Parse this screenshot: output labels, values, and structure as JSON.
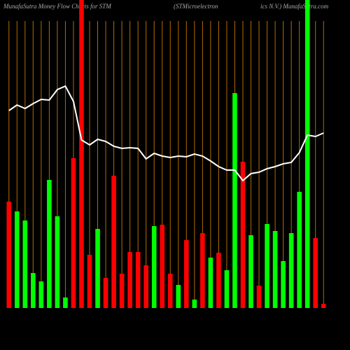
{
  "chart_data": {
    "type": "bar",
    "title": "MunafaSutra  Money Flow  Charts for STM",
    "subtitle": "(STMicroelectron",
    "subtitle2": "ics N.V.) MunafaSutra.com",
    "categories": [
      null,
      null,
      null,
      null,
      null,
      null,
      null,
      null,
      null,
      null,
      null,
      null,
      null,
      null,
      null,
      null,
      null,
      null,
      null,
      null,
      null,
      null,
      null,
      null,
      null,
      null,
      null,
      null,
      null,
      null,
      null,
      null,
      null,
      null,
      null,
      null,
      null,
      null,
      null,
      null
    ],
    "values": [
      152,
      138,
      125,
      50,
      38,
      183,
      131,
      15,
      214,
      440,
      76,
      113,
      43,
      189,
      49,
      80,
      80,
      61,
      117,
      119,
      49,
      33,
      97,
      12,
      107,
      72,
      79,
      54,
      307,
      209,
      104,
      32,
      120,
      110,
      67,
      107,
      166,
      440,
      100,
      6
    ],
    "colors": [
      "#ff0000",
      "#00ff00",
      "#00ff00",
      "#00ff00",
      "#00ff00",
      "#00ff00",
      "#00ff00",
      "#00ff00",
      "#ff0000",
      "#ff0000",
      "#ff0000",
      "#00ff00",
      "#ff0000",
      "#ff0000",
      "#ff0000",
      "#ff0000",
      "#ff0000",
      "#ff0000",
      "#00ff00",
      "#ff0000",
      "#ff0000",
      "#00ff00",
      "#ff0000",
      "#00ff00",
      "#ff0000",
      "#00ff00",
      "#ff0000",
      "#00ff00",
      "#00ff00",
      "#ff0000",
      "#00ff00",
      "#ff0000",
      "#00ff00",
      "#00ff00",
      "#00ff00",
      "#00ff00",
      "#00ff00",
      "#00ff00",
      "#ff0000",
      "#ff0000"
    ],
    "line": {
      "color": "#ffffff",
      "values": [
        282,
        290,
        285,
        292,
        298,
        297,
        312,
        317,
        295,
        240,
        233,
        241,
        238,
        231,
        228,
        229,
        228,
        213,
        221,
        217,
        215,
        217,
        216,
        220,
        217,
        210,
        202,
        197,
        197,
        182,
        192,
        194,
        199,
        202,
        206,
        208,
        222,
        247,
        245,
        250
      ]
    },
    "ylim": [
      0,
      440
    ],
    "gridline_color": "#b36b00"
  }
}
